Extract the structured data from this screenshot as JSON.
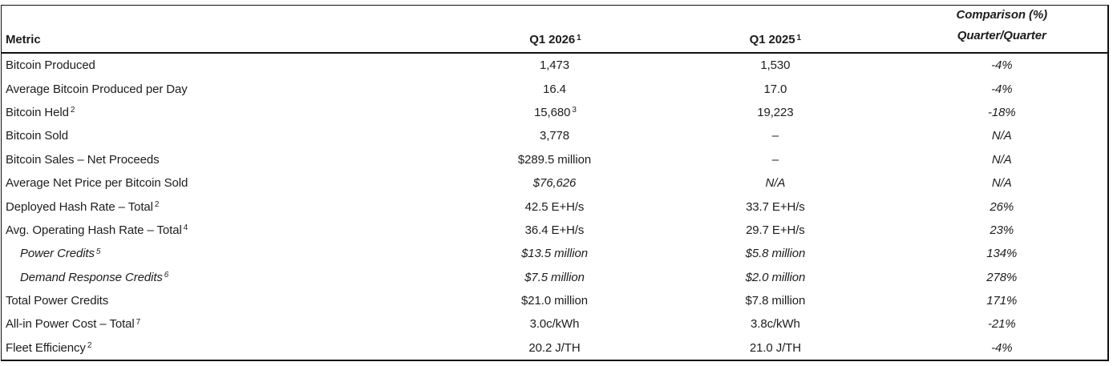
{
  "header": {
    "metric": "Metric",
    "q1_2026": "Q1 2026",
    "q1_2026_sup": "1",
    "q1_2025": "Q1 2025",
    "q1_2025_sup": "1",
    "comparison_line1": "Comparison (%)",
    "comparison_line2": "Quarter/Quarter"
  },
  "rows": [
    {
      "metric": "Bitcoin Produced",
      "metric_sup": "",
      "v2026": "1,473",
      "v2026_sup": "",
      "v2025": "1,530",
      "comp": "-4%"
    },
    {
      "metric": "Average Bitcoin Produced per Day",
      "metric_sup": "",
      "v2026": "16.4",
      "v2026_sup": "",
      "v2025": "17.0",
      "comp": "-4%"
    },
    {
      "metric": "Bitcoin Held",
      "metric_sup": "2",
      "v2026": "15,680",
      "v2026_sup": "3",
      "v2025": "19,223",
      "comp": "-18%"
    },
    {
      "metric": "Bitcoin Sold",
      "metric_sup": "",
      "v2026": "3,778",
      "v2026_sup": "",
      "v2025": "–",
      "comp": "N/A"
    },
    {
      "metric": "Bitcoin Sales – Net Proceeds",
      "metric_sup": "",
      "v2026": "$289.5 million",
      "v2026_sup": "",
      "v2025": "–",
      "comp": "N/A"
    },
    {
      "metric": "Average Net Price per Bitcoin Sold",
      "metric_sup": "",
      "v2026": "$76,626",
      "v2026_sup": "",
      "v2025": "N/A",
      "comp": "N/A"
    },
    {
      "metric": "Deployed Hash Rate – Total",
      "metric_sup": "2",
      "v2026": "42.5 E+H/s",
      "v2026_sup": "",
      "v2025": "33.7 E+H/s",
      "comp": "26%"
    },
    {
      "metric": "Avg. Operating Hash Rate – Total",
      "metric_sup": "4",
      "v2026": "36.4 E+H/s",
      "v2026_sup": "",
      "v2025": "29.7 E+H/s",
      "comp": "23%"
    },
    {
      "metric": "Power Credits",
      "metric_sup": "5",
      "v2026": "$13.5 million",
      "v2026_sup": "",
      "v2025": "$5.8 million",
      "comp": "134%"
    },
    {
      "metric": "Demand Response Credits",
      "metric_sup": "6",
      "v2026": "$7.5 million",
      "v2026_sup": "",
      "v2025": "$2.0 million",
      "comp": "278%"
    },
    {
      "metric": "Total Power Credits",
      "metric_sup": "",
      "v2026": "$21.0 million",
      "v2026_sup": "",
      "v2025": "$7.8 million",
      "comp": "171%"
    },
    {
      "metric": "All-in Power Cost – Total",
      "metric_sup": "7",
      "v2026": "3.0c/kWh",
      "v2026_sup": "",
      "v2025": "3.8c/kWh",
      "comp": "-21%"
    },
    {
      "metric": "Fleet Efficiency",
      "metric_sup": "2",
      "v2026": "20.2 J/TH",
      "v2026_sup": "",
      "v2025": "21.0 J/TH",
      "comp": "-4%"
    }
  ],
  "colors": {
    "text": "#1d1d1d",
    "border": "#111111",
    "background": "#ffffff"
  }
}
